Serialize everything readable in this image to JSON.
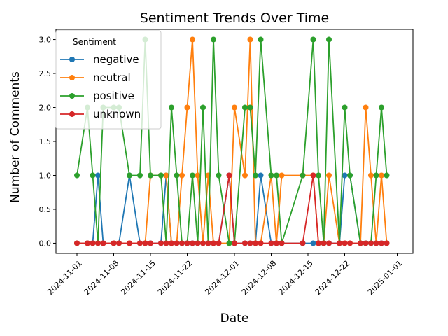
{
  "chart_data": {
    "type": "line",
    "title": "Sentiment Trends Over Time",
    "xlabel": "Date",
    "ylabel": "Number of Comments",
    "xlim": [
      "2024-10-28",
      "2025-01-04"
    ],
    "ylim": [
      -0.15,
      3.15
    ],
    "grid": false,
    "x_ticks": [
      {
        "date": "2024-11-01",
        "label": "2024-11-01"
      },
      {
        "date": "2024-11-08",
        "label": "2024-11-08"
      },
      {
        "date": "2024-11-15",
        "label": "2024-11-15"
      },
      {
        "date": "2024-11-22",
        "label": "2024-11-22"
      },
      {
        "date": "2024-12-01",
        "label": "2024-12-01"
      },
      {
        "date": "2024-12-08",
        "label": "2024-12-08"
      },
      {
        "date": "2024-12-15",
        "label": "2024-12-15"
      },
      {
        "date": "2024-12-22",
        "label": "2024-12-22"
      },
      {
        "date": "2025-01-01",
        "label": "2025-01-01"
      }
    ],
    "y_ticks": [
      {
        "value": 0.0,
        "label": "0.0"
      },
      {
        "value": 0.5,
        "label": "0.5"
      },
      {
        "value": 1.0,
        "label": "1.0"
      },
      {
        "value": 1.5,
        "label": "1.5"
      },
      {
        "value": 2.0,
        "label": "2.0"
      },
      {
        "value": 2.5,
        "label": "2.5"
      },
      {
        "value": 3.0,
        "label": "3.0"
      }
    ],
    "legend": {
      "title": "Sentiment",
      "placement": "upper-left"
    },
    "dates": [
      "2024-11-01",
      "2024-11-03",
      "2024-11-04",
      "2024-11-05",
      "2024-11-06",
      "2024-11-08",
      "2024-11-09",
      "2024-11-11",
      "2024-11-13",
      "2024-11-14",
      "2024-11-15",
      "2024-11-17",
      "2024-11-18",
      "2024-11-19",
      "2024-11-20",
      "2024-11-21",
      "2024-11-22",
      "2024-11-23",
      "2024-11-24",
      "2024-11-25",
      "2024-11-26",
      "2024-11-27",
      "2024-11-28",
      "2024-11-30",
      "2024-12-01",
      "2024-12-03",
      "2024-12-04",
      "2024-12-05",
      "2024-12-06",
      "2024-12-08",
      "2024-12-09",
      "2024-12-10",
      "2024-12-14",
      "2024-12-16",
      "2024-12-17",
      "2024-12-18",
      "2024-12-19",
      "2024-12-21",
      "2024-12-22",
      "2024-12-23",
      "2024-12-25",
      "2024-12-26",
      "2024-12-27",
      "2024-12-28",
      "2024-12-29",
      "2024-12-30"
    ],
    "series": [
      {
        "name": "negative",
        "color": "#1f77b4",
        "values": [
          0,
          0,
          0,
          1,
          0,
          0,
          0,
          1,
          0,
          0,
          0,
          0,
          1,
          0,
          0,
          0,
          0,
          0,
          0,
          0,
          0,
          0,
          0,
          1,
          0,
          0,
          0,
          0,
          1,
          0,
          0,
          0,
          0,
          0,
          0,
          0,
          0,
          0,
          1,
          1,
          0,
          0,
          0,
          0,
          0,
          0
        ]
      },
      {
        "name": "neutral",
        "color": "#ff7f0e",
        "values": [
          0,
          0,
          0,
          0,
          0,
          0,
          0,
          0,
          0,
          0,
          1,
          1,
          1,
          0,
          0,
          1,
          2,
          3,
          1,
          0,
          1,
          0,
          0,
          0,
          2,
          1,
          3,
          0,
          0,
          1,
          0,
          1,
          1,
          1,
          0,
          0,
          1,
          0,
          0,
          0,
          0,
          2,
          1,
          0,
          1,
          0
        ]
      },
      {
        "name": "positive",
        "color": "#2ca02c",
        "values": [
          1,
          2,
          1,
          0,
          2,
          2,
          2,
          1,
          1,
          3,
          1,
          1,
          0,
          2,
          1,
          0,
          0,
          1,
          0,
          2,
          0,
          3,
          1,
          0,
          0,
          2,
          2,
          1,
          3,
          1,
          1,
          0,
          1,
          3,
          1,
          0,
          3,
          0,
          2,
          1,
          0,
          0,
          0,
          1,
          2,
          1
        ]
      },
      {
        "name": "unknown",
        "color": "#d62728",
        "values": [
          0,
          0,
          0,
          0,
          0,
          0,
          0,
          0,
          0,
          0,
          0,
          0,
          0,
          0,
          0,
          0,
          0,
          0,
          0,
          0,
          0,
          0,
          0,
          1,
          0,
          0,
          0,
          0,
          0,
          0,
          0,
          0,
          0,
          1,
          0,
          0,
          0,
          0,
          0,
          0,
          0,
          0,
          0,
          0,
          0,
          0
        ]
      }
    ]
  }
}
